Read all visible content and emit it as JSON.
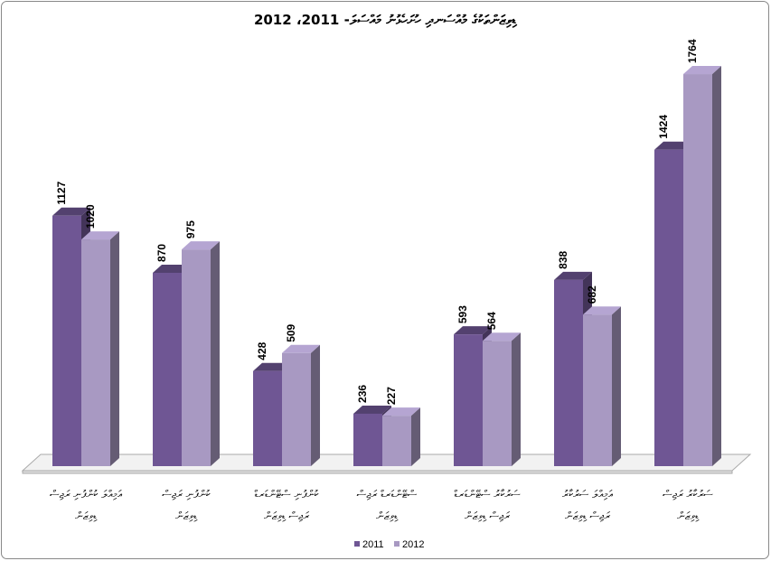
{
  "chart_data": {
    "type": "bar3d",
    "title": "ޑިވިޒަންތަކުގެ މުއްސަނދި ހުށަހެޅުނު މައްސަލަ- 2011، 2012",
    "categories": [
      [
        "އަމިއްލަ ކުންފުނި ރަޖިސް",
        "ޑިވިޒަން"
      ],
      [
        "ކުންފުނި ރަޖިސް",
        "ޑިވިޒަން"
      ],
      [
        "ކުންފުނި ސްޓޭންޑަރޑް",
        "ރަޖިސް ޑިވިޒަން"
      ],
      [
        "ސްޓޭންޑަރޑް ރަޖިސް",
        "ޑިވިޒަން"
      ],
      [
        "ސަރުކާރު ސްޓޭންޑަރޑް",
        "ރަޖިސް ޑިވިޒަން"
      ],
      [
        "އަމިއްލަ ސަރުކާރު",
        "ރަޖިސް ޑިވިޒަން"
      ],
      [
        "ސަރުކާރު ރަޖިސް",
        "ޑިވިޒަން"
      ]
    ],
    "series": [
      {
        "name": "2011",
        "color": "#6f5694",
        "values": [
          1127,
          870,
          428,
          236,
          593,
          838,
          1424
        ]
      },
      {
        "name": "2012",
        "color": "#a899c2",
        "values": [
          1020,
          975,
          509,
          227,
          564,
          682,
          1764
        ]
      }
    ],
    "legend": "bottom"
  }
}
